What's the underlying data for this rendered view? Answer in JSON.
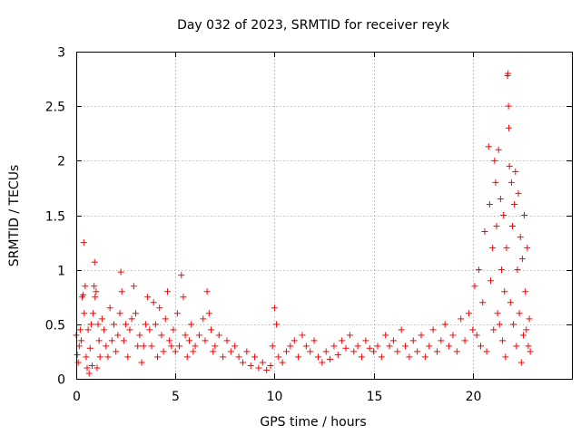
{
  "chart_data": {
    "type": "scatter",
    "title": "Day 032 of 2023, SRMTID for receiver reyk",
    "xlabel": "GPS time / hours",
    "ylabel": "SRMTID / TECUs",
    "xlim": [
      0,
      25
    ],
    "ylim": [
      0,
      3
    ],
    "xticks": [
      "0",
      "5",
      "10",
      "15",
      "20"
    ],
    "xtick_values": [
      0,
      5,
      10,
      15,
      20
    ],
    "yticks": [
      "0",
      "0.5",
      "1",
      "1.5",
      "2",
      "2.5",
      "3"
    ],
    "ytick_values": [
      0,
      0.5,
      1,
      1.5,
      2,
      2.5,
      3
    ],
    "grid": true,
    "marker": "+",
    "color": "#ff0000",
    "series": [
      {
        "name": "SRMTID",
        "points": [
          [
            0.0,
            0.4
          ],
          [
            0.05,
            0.22
          ],
          [
            0.1,
            0.15
          ],
          [
            0.15,
            0.3
          ],
          [
            0.2,
            0.45
          ],
          [
            0.25,
            0.35
          ],
          [
            0.3,
            0.75
          ],
          [
            0.35,
            0.77
          ],
          [
            0.38,
            1.25
          ],
          [
            0.4,
            0.6
          ],
          [
            0.45,
            0.85
          ],
          [
            0.5,
            0.2
          ],
          [
            0.55,
            0.1
          ],
          [
            0.6,
            0.45
          ],
          [
            0.65,
            0.05
          ],
          [
            0.7,
            0.28
          ],
          [
            0.75,
            0.5
          ],
          [
            0.8,
            0.12
          ],
          [
            0.85,
            0.6
          ],
          [
            0.9,
            0.85
          ],
          [
            0.93,
            1.07
          ],
          [
            0.95,
            0.75
          ],
          [
            1.0,
            0.8
          ],
          [
            1.05,
            0.1
          ],
          [
            1.1,
            0.5
          ],
          [
            1.15,
            0.35
          ],
          [
            1.2,
            0.2
          ],
          [
            1.3,
            0.55
          ],
          [
            1.4,
            0.45
          ],
          [
            1.5,
            0.3
          ],
          [
            1.6,
            0.2
          ],
          [
            1.7,
            0.65
          ],
          [
            1.8,
            0.35
          ],
          [
            1.9,
            0.5
          ],
          [
            2.0,
            0.25
          ],
          [
            2.1,
            0.4
          ],
          [
            2.2,
            0.6
          ],
          [
            2.25,
            0.98
          ],
          [
            2.3,
            0.8
          ],
          [
            2.4,
            0.35
          ],
          [
            2.5,
            0.5
          ],
          [
            2.6,
            0.2
          ],
          [
            2.7,
            0.45
          ],
          [
            2.8,
            0.55
          ],
          [
            2.9,
            0.85
          ],
          [
            3.0,
            0.6
          ],
          [
            3.1,
            0.3
          ],
          [
            3.2,
            0.4
          ],
          [
            3.3,
            0.15
          ],
          [
            3.4,
            0.3
          ],
          [
            3.5,
            0.5
          ],
          [
            3.6,
            0.75
          ],
          [
            3.7,
            0.45
          ],
          [
            3.8,
            0.3
          ],
          [
            3.9,
            0.7
          ],
          [
            4.0,
            0.5
          ],
          [
            4.1,
            0.2
          ],
          [
            4.2,
            0.65
          ],
          [
            4.3,
            0.4
          ],
          [
            4.4,
            0.25
          ],
          [
            4.5,
            0.55
          ],
          [
            4.6,
            0.8
          ],
          [
            4.7,
            0.35
          ],
          [
            4.8,
            0.3
          ],
          [
            4.9,
            0.45
          ],
          [
            5.0,
            0.25
          ],
          [
            5.1,
            0.6
          ],
          [
            5.2,
            0.3
          ],
          [
            5.3,
            0.95
          ],
          [
            5.4,
            0.75
          ],
          [
            5.5,
            0.4
          ],
          [
            5.6,
            0.2
          ],
          [
            5.7,
            0.35
          ],
          [
            5.8,
            0.5
          ],
          [
            5.9,
            0.25
          ],
          [
            6.0,
            0.3
          ],
          [
            6.2,
            0.4
          ],
          [
            6.4,
            0.55
          ],
          [
            6.5,
            0.35
          ],
          [
            6.6,
            0.8
          ],
          [
            6.7,
            0.6
          ],
          [
            6.8,
            0.45
          ],
          [
            6.9,
            0.25
          ],
          [
            7.0,
            0.3
          ],
          [
            7.2,
            0.4
          ],
          [
            7.4,
            0.2
          ],
          [
            7.6,
            0.35
          ],
          [
            7.8,
            0.25
          ],
          [
            8.0,
            0.3
          ],
          [
            8.2,
            0.2
          ],
          [
            8.4,
            0.15
          ],
          [
            8.6,
            0.25
          ],
          [
            8.8,
            0.12
          ],
          [
            9.0,
            0.2
          ],
          [
            9.2,
            0.1
          ],
          [
            9.4,
            0.15
          ],
          [
            9.6,
            0.08
          ],
          [
            9.8,
            0.12
          ],
          [
            9.9,
            0.3
          ],
          [
            10.0,
            0.65
          ],
          [
            10.1,
            0.5
          ],
          [
            10.2,
            0.2
          ],
          [
            10.4,
            0.15
          ],
          [
            10.6,
            0.25
          ],
          [
            10.8,
            0.3
          ],
          [
            11.0,
            0.35
          ],
          [
            11.2,
            0.2
          ],
          [
            11.4,
            0.4
          ],
          [
            11.6,
            0.3
          ],
          [
            11.8,
            0.25
          ],
          [
            12.0,
            0.35
          ],
          [
            12.2,
            0.2
          ],
          [
            12.4,
            0.15
          ],
          [
            12.6,
            0.25
          ],
          [
            12.8,
            0.18
          ],
          [
            13.0,
            0.3
          ],
          [
            13.2,
            0.22
          ],
          [
            13.4,
            0.35
          ],
          [
            13.6,
            0.28
          ],
          [
            13.8,
            0.4
          ],
          [
            14.0,
            0.25
          ],
          [
            14.2,
            0.3
          ],
          [
            14.4,
            0.2
          ],
          [
            14.6,
            0.35
          ],
          [
            14.8,
            0.28
          ],
          [
            15.0,
            0.25
          ],
          [
            15.2,
            0.3
          ],
          [
            15.4,
            0.2
          ],
          [
            15.6,
            0.4
          ],
          [
            15.8,
            0.3
          ],
          [
            16.0,
            0.35
          ],
          [
            16.2,
            0.25
          ],
          [
            16.4,
            0.45
          ],
          [
            16.6,
            0.3
          ],
          [
            16.8,
            0.2
          ],
          [
            17.0,
            0.35
          ],
          [
            17.2,
            0.25
          ],
          [
            17.4,
            0.4
          ],
          [
            17.6,
            0.2
          ],
          [
            17.8,
            0.3
          ],
          [
            18.0,
            0.45
          ],
          [
            18.2,
            0.25
          ],
          [
            18.4,
            0.35
          ],
          [
            18.6,
            0.5
          ],
          [
            18.8,
            0.3
          ],
          [
            19.0,
            0.4
          ],
          [
            19.2,
            0.25
          ],
          [
            19.4,
            0.55
          ],
          [
            19.6,
            0.35
          ],
          [
            19.8,
            0.6
          ],
          [
            20.0,
            0.45
          ],
          [
            20.1,
            0.85
          ],
          [
            20.2,
            0.4
          ],
          [
            20.3,
            1.0
          ],
          [
            20.4,
            0.3
          ],
          [
            20.5,
            0.7
          ],
          [
            20.6,
            1.35
          ],
          [
            20.7,
            0.25
          ],
          [
            20.8,
            2.13
          ],
          [
            20.85,
            1.6
          ],
          [
            20.9,
            0.9
          ],
          [
            21.0,
            1.2
          ],
          [
            21.05,
            0.45
          ],
          [
            21.1,
            2.0
          ],
          [
            21.15,
            1.8
          ],
          [
            21.2,
            1.4
          ],
          [
            21.25,
            0.6
          ],
          [
            21.3,
            2.1
          ],
          [
            21.35,
            0.5
          ],
          [
            21.4,
            1.65
          ],
          [
            21.45,
            1.0
          ],
          [
            21.5,
            0.35
          ],
          [
            21.55,
            1.5
          ],
          [
            21.6,
            0.8
          ],
          [
            21.65,
            0.2
          ],
          [
            21.7,
            1.2
          ],
          [
            21.75,
            2.78
          ],
          [
            21.78,
            2.8
          ],
          [
            21.8,
            2.5
          ],
          [
            21.82,
            2.3
          ],
          [
            21.85,
            1.95
          ],
          [
            21.9,
            0.7
          ],
          [
            21.95,
            1.8
          ],
          [
            22.0,
            1.4
          ],
          [
            22.05,
            0.5
          ],
          [
            22.1,
            1.6
          ],
          [
            22.15,
            1.9
          ],
          [
            22.2,
            0.3
          ],
          [
            22.25,
            1.0
          ],
          [
            22.3,
            1.7
          ],
          [
            22.35,
            0.6
          ],
          [
            22.4,
            1.3
          ],
          [
            22.45,
            0.15
          ],
          [
            22.5,
            1.1
          ],
          [
            22.55,
            0.4
          ],
          [
            22.6,
            1.5
          ],
          [
            22.65,
            0.8
          ],
          [
            22.7,
            0.45
          ],
          [
            22.75,
            1.2
          ],
          [
            22.8,
            0.3
          ],
          [
            22.85,
            0.55
          ],
          [
            22.9,
            0.25
          ]
        ]
      }
    ]
  }
}
